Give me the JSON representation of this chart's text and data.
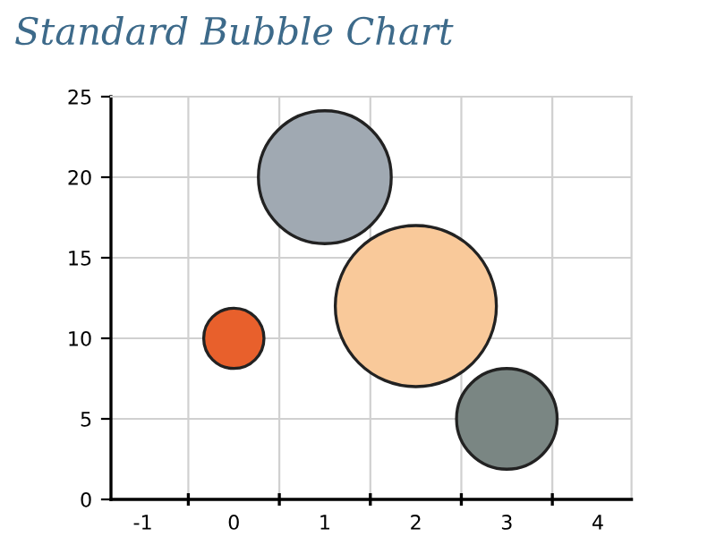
{
  "chart_data": {
    "type": "bubble",
    "title": "Standard Bubble Chart",
    "x": [
      0,
      1,
      2,
      3
    ],
    "values": [
      10,
      20,
      12,
      5
    ],
    "sizes": [
      0.14,
      0.68,
      1,
      0.39
    ],
    "colors": [
      "#e8602c",
      "#a0a9b2",
      "#f9c99a",
      "#7a8683"
    ],
    "xlim": [
      -1.35,
      4.37
    ],
    "xticks": [
      -1,
      {
        "value": -0.5,
        "label": null
      },
      0,
      {
        "value": 0.5,
        "label": null
      },
      1,
      {
        "value": 1.5,
        "label": null
      },
      2,
      {
        "value": 2.5,
        "label": null
      },
      3,
      {
        "value": 3.5,
        "label": null
      },
      4
    ],
    "ylim": [
      0,
      25
    ],
    "yticks": [
      0,
      5,
      10,
      15,
      20,
      25
    ],
    "grid": true
  }
}
